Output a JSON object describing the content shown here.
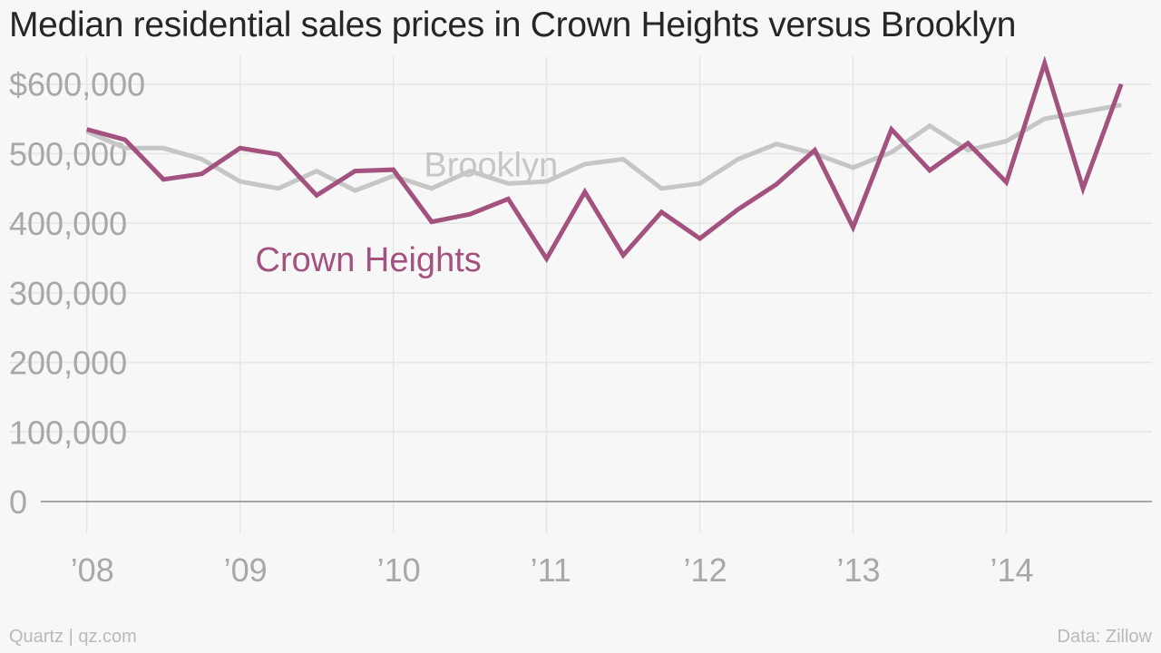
{
  "chart_data": {
    "type": "line",
    "title": "Median residential sales prices in Crown Heights versus Brooklyn",
    "xlabel": "",
    "ylabel": "",
    "x_tick_labels": [
      "’08",
      "’09",
      "’10",
      "’11",
      "’12",
      "’13",
      "’14"
    ],
    "x_tick_years": [
      2008,
      2009,
      2010,
      2011,
      2012,
      2013,
      2014
    ],
    "xlim": [
      2007.7,
      2014.95
    ],
    "y_tick_labels": [
      "0",
      "100,000",
      "200,000",
      "300,000",
      "400,000",
      "500,000",
      "$600,000"
    ],
    "y_tick_values": [
      0,
      100000,
      200000,
      300000,
      400000,
      500000,
      600000
    ],
    "ylim": [
      0,
      640000
    ],
    "x": [
      "2008 Q1",
      "2008 Q2",
      "2008 Q3",
      "2008 Q4",
      "2009 Q1",
      "2009 Q2",
      "2009 Q3",
      "2009 Q4",
      "2010 Q1",
      "2010 Q2",
      "2010 Q3",
      "2010 Q4",
      "2011 Q1",
      "2011 Q2",
      "2011 Q3",
      "2011 Q4",
      "2012 Q1",
      "2012 Q2",
      "2012 Q3",
      "2012 Q4",
      "2013 Q1",
      "2013 Q2",
      "2013 Q3",
      "2013 Q4",
      "2014 Q1",
      "2014 Q2",
      "2014 Q3",
      "2014 Q4"
    ],
    "x_numeric": [
      2008.0,
      2008.25,
      2008.5,
      2008.75,
      2009.0,
      2009.25,
      2009.5,
      2009.75,
      2010.0,
      2010.25,
      2010.5,
      2010.75,
      2011.0,
      2011.25,
      2011.5,
      2011.75,
      2012.0,
      2012.25,
      2012.5,
      2012.75,
      2013.0,
      2013.25,
      2013.5,
      2013.75,
      2014.0,
      2014.25,
      2014.5,
      2014.75
    ],
    "series": [
      {
        "name": "Brooklyn",
        "color": "#c6c6c6",
        "values": [
          532000,
          508000,
          508000,
          492000,
          460000,
          450000,
          475000,
          447000,
          468000,
          450000,
          475000,
          457000,
          460000,
          485000,
          492000,
          450000,
          457000,
          492000,
          514000,
          500000,
          480000,
          502000,
          540000,
          505000,
          518000,
          550000,
          560000,
          570000
        ]
      },
      {
        "name": "Crown Heights",
        "color": "#a3527f",
        "values": [
          535000,
          520000,
          463000,
          471000,
          508000,
          499000,
          440000,
          475000,
          477000,
          402000,
          413000,
          435000,
          349000,
          445000,
          354000,
          416000,
          378000,
          420000,
          456000,
          505000,
          394000,
          535000,
          476000,
          515000,
          459000,
          630000,
          450000,
          600000
        ]
      }
    ],
    "series_labels": [
      {
        "text": "Brooklyn",
        "anchor_x": 2010.2,
        "anchor_y": 467000,
        "color": "#c6c6c6"
      },
      {
        "text": "Crown Heights",
        "anchor_x": 2009.1,
        "anchor_y": 331000,
        "color": "#a3527f"
      }
    ],
    "grid": true,
    "legend": "none"
  },
  "footer": {
    "source_left": "Quartz | qz.com",
    "source_right": "Data: Zillow"
  }
}
